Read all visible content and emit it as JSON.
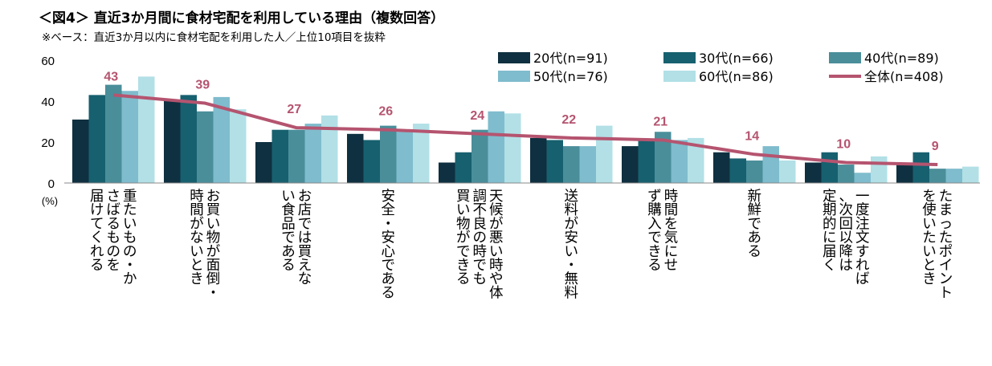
{
  "chart_data": {
    "type": "bar",
    "title": "＜図4＞ 直近3か月間に食材宅配を利用している理由（複数回答）",
    "subtitle": "※ベース：直近3か月以内に食材宅配を利用した人／上位10項目を抜粋",
    "ylabel": "(%)",
    "ylim": [
      0,
      60
    ],
    "yticks": [
      "0",
      "20",
      "40",
      "60"
    ],
    "categories": [
      "重たいもの・かさばるものを届けてくれる",
      "お買い物が面倒・時間がないとき",
      "お店では買えない食品である",
      "安全・安心である",
      "天候が悪い時や体調不良の時でも買い物ができる",
      "送料が安い・無料",
      "時間を気にせず購入できる",
      "新鮮である",
      "一度注文すれば、次回以降は定期的に届く",
      "たまったポイントを使いたいとき"
    ],
    "series": [
      {
        "name": "20代(n=91)",
        "color": "#0f3040",
        "values": [
          31,
          40,
          20,
          24,
          10,
          22,
          18,
          15,
          10,
          9
        ]
      },
      {
        "name": "30代(n=66)",
        "color": "#17606f",
        "values": [
          43,
          43,
          26,
          21,
          15,
          21,
          21,
          12,
          15,
          15
        ]
      },
      {
        "name": "40代(n=89)",
        "color": "#4a8e9a",
        "values": [
          48,
          35,
          26,
          28,
          26,
          18,
          25,
          11,
          9,
          7
        ]
      },
      {
        "name": "50代(n=76)",
        "color": "#7fbccd",
        "values": [
          45,
          42,
          29,
          25,
          35,
          18,
          21,
          18,
          5,
          7
        ]
      },
      {
        "name": "60代(n=86)",
        "color": "#b2e0e6",
        "values": [
          52,
          36,
          33,
          29,
          34,
          28,
          22,
          11,
          13,
          8
        ]
      }
    ],
    "line": {
      "name": "全体(n=408)",
      "color": "#b5546f",
      "values": [
        43,
        39,
        27,
        26,
        24,
        22,
        21,
        14,
        10,
        9
      ]
    },
    "legend_position": "top-right"
  }
}
